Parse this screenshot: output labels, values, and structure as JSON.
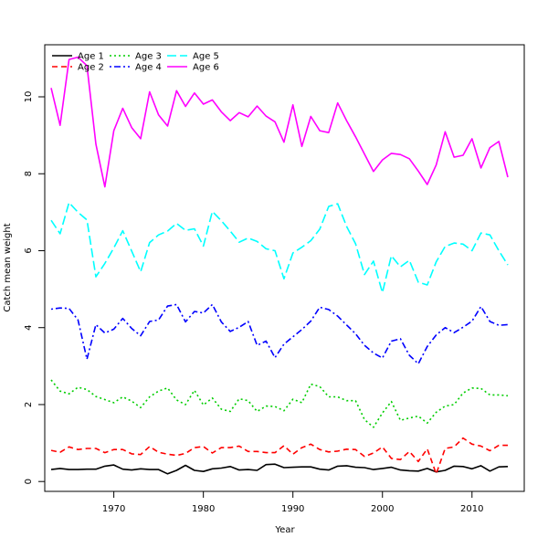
{
  "chart_data": {
    "type": "line",
    "title": "",
    "xlabel": "Year",
    "ylabel": "Catch mean weight",
    "xlim": [
      1963,
      2014
    ],
    "ylim": [
      0,
      11.2
    ],
    "x_ticks": [
      1970,
      1980,
      1990,
      2000,
      2010
    ],
    "y_ticks": [
      0,
      2,
      4,
      6,
      8,
      10
    ],
    "x_tick_labels": [
      "1970",
      "1980",
      "1990",
      "2000",
      "2010"
    ],
    "y_tick_labels": [
      "0",
      "2",
      "4",
      "6",
      "8",
      "10"
    ],
    "legend_position": "top-left",
    "x": [
      1963,
      1964,
      1965,
      1966,
      1967,
      1968,
      1969,
      1970,
      1971,
      1972,
      1973,
      1974,
      1975,
      1976,
      1977,
      1978,
      1979,
      1980,
      1981,
      1982,
      1983,
      1984,
      1985,
      1986,
      1987,
      1988,
      1989,
      1990,
      1991,
      1992,
      1993,
      1994,
      1995,
      1996,
      1997,
      1998,
      1999,
      2000,
      2001,
      2002,
      2003,
      2004,
      2005,
      2006,
      2007,
      2008,
      2009,
      2010,
      2011,
      2012,
      2013,
      2014
    ],
    "series": [
      {
        "name": "Age 1",
        "color": "#000000",
        "dash": "solid",
        "values": [
          0.31,
          0.34,
          0.31,
          0.31,
          0.32,
          0.32,
          0.4,
          0.43,
          0.32,
          0.3,
          0.33,
          0.31,
          0.31,
          0.2,
          0.29,
          0.42,
          0.29,
          0.26,
          0.33,
          0.35,
          0.39,
          0.3,
          0.31,
          0.29,
          0.44,
          0.45,
          0.36,
          0.37,
          0.38,
          0.38,
          0.32,
          0.3,
          0.4,
          0.41,
          0.37,
          0.36,
          0.31,
          0.34,
          0.37,
          0.3,
          0.28,
          0.27,
          0.34,
          0.25,
          0.29,
          0.4,
          0.39,
          0.33,
          0.41,
          0.27,
          0.38,
          0.39
        ]
      },
      {
        "name": "Age 2",
        "color": "#ff0000",
        "dash": "dashed",
        "values": [
          0.81,
          0.76,
          0.9,
          0.83,
          0.86,
          0.86,
          0.75,
          0.83,
          0.83,
          0.72,
          0.7,
          0.91,
          0.76,
          0.71,
          0.68,
          0.73,
          0.88,
          0.91,
          0.74,
          0.88,
          0.88,
          0.92,
          0.78,
          0.78,
          0.75,
          0.75,
          0.93,
          0.71,
          0.88,
          0.97,
          0.83,
          0.77,
          0.79,
          0.84,
          0.83,
          0.65,
          0.74,
          0.9,
          0.6,
          0.57,
          0.78,
          0.52,
          0.85,
          0.2,
          0.86,
          0.9,
          1.13,
          0.97,
          0.92,
          0.8,
          0.94,
          0.94
        ]
      },
      {
        "name": "Age 3",
        "color": "#00cd00",
        "dash": "dotted",
        "values": [
          2.64,
          2.35,
          2.28,
          2.45,
          2.39,
          2.21,
          2.13,
          2.05,
          2.2,
          2.09,
          1.92,
          2.2,
          2.35,
          2.43,
          2.12,
          2.0,
          2.37,
          1.99,
          2.17,
          1.88,
          1.82,
          2.15,
          2.1,
          1.82,
          1.96,
          1.95,
          1.84,
          2.14,
          2.05,
          2.53,
          2.47,
          2.2,
          2.2,
          2.1,
          2.1,
          1.61,
          1.41,
          1.78,
          2.08,
          1.59,
          1.65,
          1.7,
          1.52,
          1.8,
          1.96,
          2.0,
          2.3,
          2.43,
          2.42,
          2.25,
          2.25,
          2.23
        ]
      },
      {
        "name": "Age 4",
        "color": "#0000ff",
        "dash": "dashdot",
        "values": [
          4.48,
          4.51,
          4.5,
          4.2,
          3.18,
          4.08,
          3.86,
          3.96,
          4.24,
          3.98,
          3.79,
          4.16,
          4.2,
          4.56,
          4.6,
          4.15,
          4.42,
          4.38,
          4.6,
          4.15,
          3.9,
          4.01,
          4.16,
          3.54,
          3.65,
          3.22,
          3.57,
          3.76,
          3.95,
          4.17,
          4.53,
          4.47,
          4.3,
          4.07,
          3.84,
          3.54,
          3.34,
          3.21,
          3.65,
          3.71,
          3.28,
          3.06,
          3.51,
          3.81,
          4.0,
          3.87,
          4.01,
          4.17,
          4.55,
          4.16,
          4.06,
          4.08
        ]
      },
      {
        "name": "Age 5",
        "color": "#00ffff",
        "dash": "longdash",
        "values": [
          6.79,
          6.44,
          7.25,
          7.0,
          6.8,
          5.32,
          5.67,
          6.07,
          6.52,
          5.99,
          5.45,
          6.21,
          6.41,
          6.51,
          6.71,
          6.53,
          6.57,
          6.12,
          7.02,
          6.78,
          6.51,
          6.22,
          6.33,
          6.24,
          6.05,
          6.0,
          5.27,
          5.94,
          6.09,
          6.26,
          6.56,
          7.15,
          7.22,
          6.63,
          6.18,
          5.38,
          5.73,
          4.91,
          5.87,
          5.58,
          5.75,
          5.18,
          5.11,
          5.71,
          6.11,
          6.2,
          6.17,
          6.0,
          6.46,
          6.41,
          6.0,
          5.63
        ]
      },
      {
        "name": "Age 6",
        "color": "#ff00ff",
        "dash": "solid",
        "values": [
          10.23,
          9.26,
          10.97,
          11.03,
          10.81,
          8.77,
          7.66,
          9.12,
          9.7,
          9.2,
          8.91,
          10.13,
          9.53,
          9.24,
          10.16,
          9.75,
          10.1,
          9.81,
          9.92,
          9.61,
          9.38,
          9.59,
          9.48,
          9.76,
          9.5,
          9.35,
          8.82,
          9.79,
          8.71,
          9.49,
          9.12,
          9.07,
          9.84,
          9.38,
          8.96,
          8.51,
          8.06,
          8.36,
          8.53,
          8.5,
          8.39,
          8.07,
          7.72,
          8.23,
          9.09,
          8.43,
          8.48,
          8.91,
          8.15,
          8.68,
          8.84,
          7.91
        ]
      }
    ]
  }
}
